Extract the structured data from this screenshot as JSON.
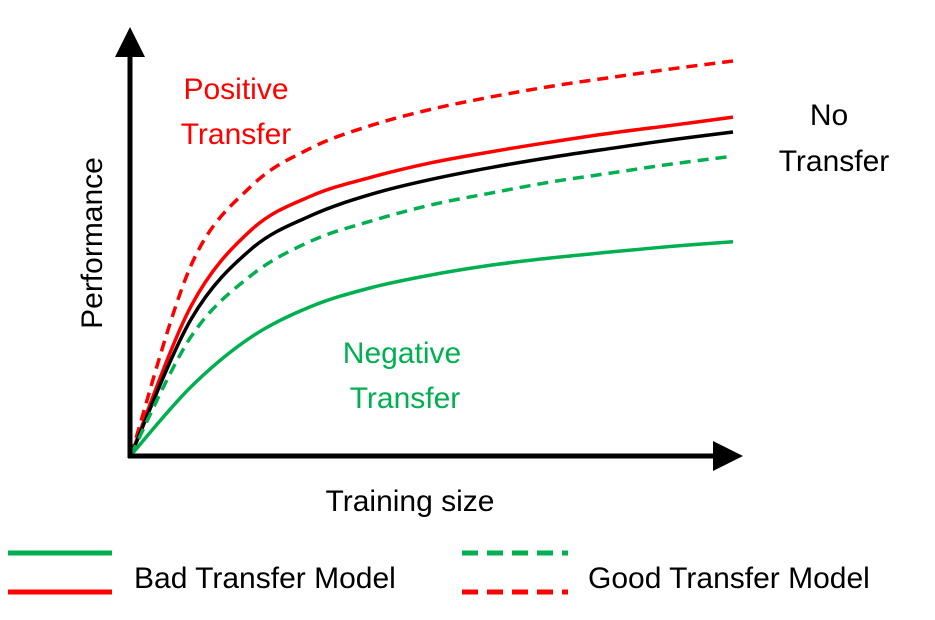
{
  "chart_data": {
    "type": "line",
    "xlabel": "Training size",
    "ylabel": "Performance",
    "x": [
      0,
      0.1,
      0.2,
      0.3,
      0.4,
      0.5,
      0.6,
      0.7,
      0.8,
      0.9,
      1.0
    ],
    "grid": false,
    "series": [
      {
        "key": "good_positive",
        "color": "#ff0000",
        "style": "dashed",
        "values": [
          0,
          0.447,
          0.633,
          0.723,
          0.776,
          0.814,
          0.843,
          0.868,
          0.889,
          0.909,
          0.927
        ]
      },
      {
        "key": "bad_positive",
        "color": "#ff0000",
        "style": "solid",
        "values": [
          0,
          0.351,
          0.53,
          0.61,
          0.654,
          0.688,
          0.714,
          0.737,
          0.758,
          0.776,
          0.795
        ]
      },
      {
        "key": "no_transfer",
        "color": "#000000",
        "style": "solid",
        "values": [
          0,
          0.32,
          0.485,
          0.564,
          0.614,
          0.649,
          0.677,
          0.701,
          0.722,
          0.742,
          0.76
        ]
      },
      {
        "key": "good_negative",
        "color": "#00b050",
        "style": "dashed",
        "values": [
          0,
          0.279,
          0.423,
          0.504,
          0.551,
          0.589,
          0.617,
          0.643,
          0.664,
          0.685,
          0.703
        ]
      },
      {
        "key": "bad_negative",
        "color": "#00b050",
        "style": "solid",
        "values": [
          0,
          0.161,
          0.278,
          0.35,
          0.394,
          0.424,
          0.447,
          0.464,
          0.478,
          0.491,
          0.502
        ]
      }
    ],
    "annotations": [
      {
        "key": "positive",
        "lines": [
          "Positive",
          "Transfer"
        ],
        "color": "#ff0000"
      },
      {
        "key": "no",
        "lines": [
          "No",
          "Transfer"
        ],
        "color": "#000000"
      },
      {
        "key": "negative",
        "lines": [
          "Negative",
          "Transfer"
        ],
        "color": "#00b050"
      }
    ],
    "legend": {
      "placement": "bottom",
      "entries": [
        {
          "label": "Bad Transfer Model",
          "style": "solid"
        },
        {
          "label": "Good Transfer Model",
          "style": "dashed"
        }
      ]
    }
  }
}
